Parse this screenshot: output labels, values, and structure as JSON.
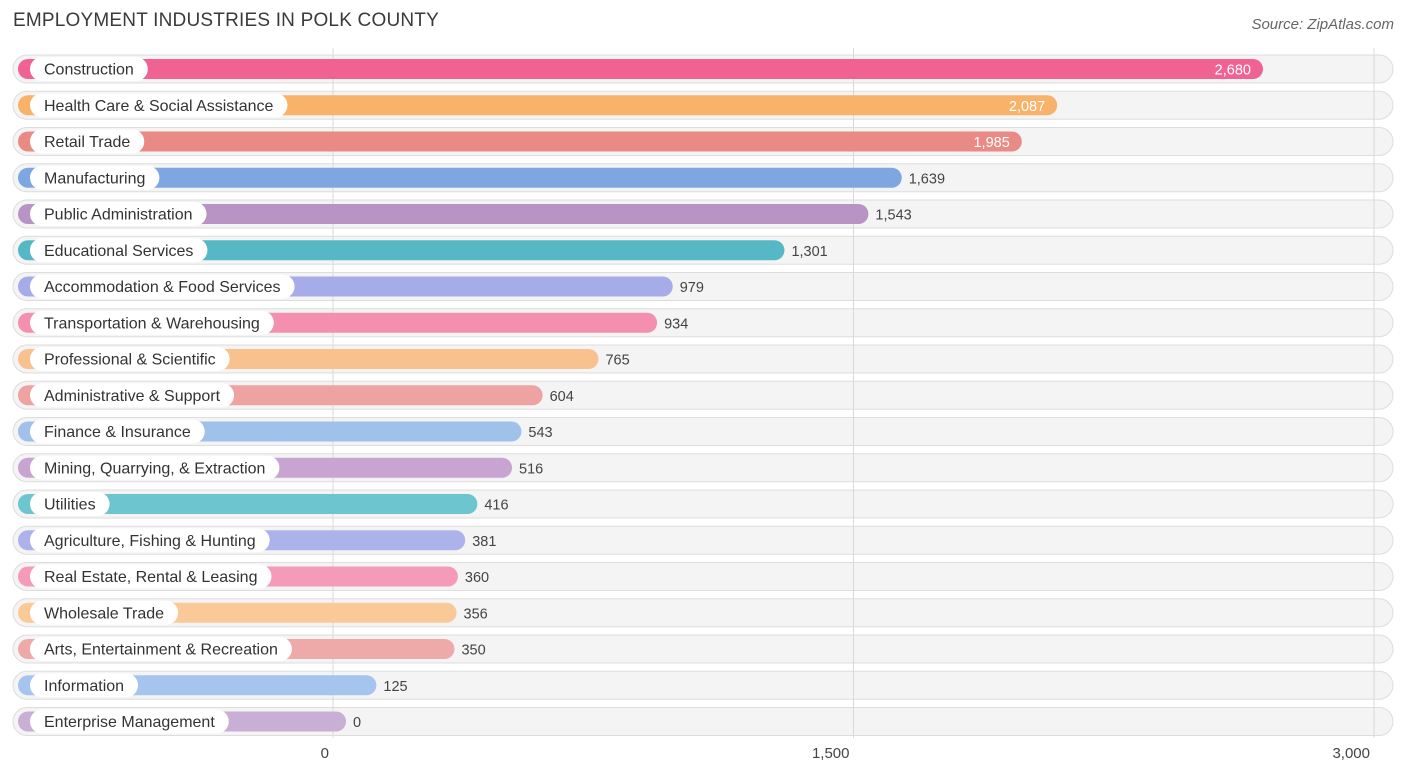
{
  "header": {
    "title": "EMPLOYMENT INDUSTRIES IN POLK COUNTY",
    "source": "Source: ZipAtlas.com"
  },
  "chart_data": {
    "type": "bar",
    "orientation": "horizontal",
    "title": "EMPLOYMENT INDUSTRIES IN POLK COUNTY",
    "xlabel": "",
    "ylabel": "",
    "xlim": [
      0,
      3000
    ],
    "x_ticks": [
      0,
      1500,
      3000
    ],
    "x_tick_labels": [
      "0",
      "1,500",
      "3,000"
    ],
    "grid": true,
    "categories": [
      "Construction",
      "Health Care & Social Assistance",
      "Retail Trade",
      "Manufacturing",
      "Public Administration",
      "Educational Services",
      "Accommodation & Food Services",
      "Transportation & Warehousing",
      "Professional & Scientific",
      "Administrative & Support",
      "Finance & Insurance",
      "Mining, Quarrying, & Extraction",
      "Utilities",
      "Agriculture, Fishing & Hunting",
      "Real Estate, Rental & Leasing",
      "Wholesale Trade",
      "Arts, Entertainment & Recreation",
      "Information",
      "Enterprise Management"
    ],
    "values": [
      2680,
      2087,
      1985,
      1639,
      1543,
      1301,
      979,
      934,
      765,
      604,
      543,
      516,
      416,
      381,
      360,
      356,
      350,
      125,
      0
    ],
    "value_labels": [
      "2,680",
      "2,087",
      "1,985",
      "1,639",
      "1,543",
      "1,301",
      "979",
      "934",
      "765",
      "604",
      "543",
      "516",
      "416",
      "381",
      "360",
      "356",
      "350",
      "125",
      "0"
    ],
    "colors": [
      "#f06292",
      "#f8b26a",
      "#e98a85",
      "#7ea6e0",
      "#b794c4",
      "#56b8c5",
      "#a6ace8",
      "#f58fb0",
      "#f9c18e",
      "#eea2a2",
      "#a0c1ea",
      "#c8a5d0",
      "#6cc5cf",
      "#acb3ea",
      "#f59ab8",
      "#f9c997",
      "#eeaaa8",
      "#a5c4ee",
      "#c9aed5"
    ],
    "label_inside": [
      true,
      true,
      true,
      false,
      false,
      false,
      false,
      false,
      false,
      false,
      false,
      false,
      false,
      false,
      false,
      false,
      false,
      false,
      false
    ]
  }
}
